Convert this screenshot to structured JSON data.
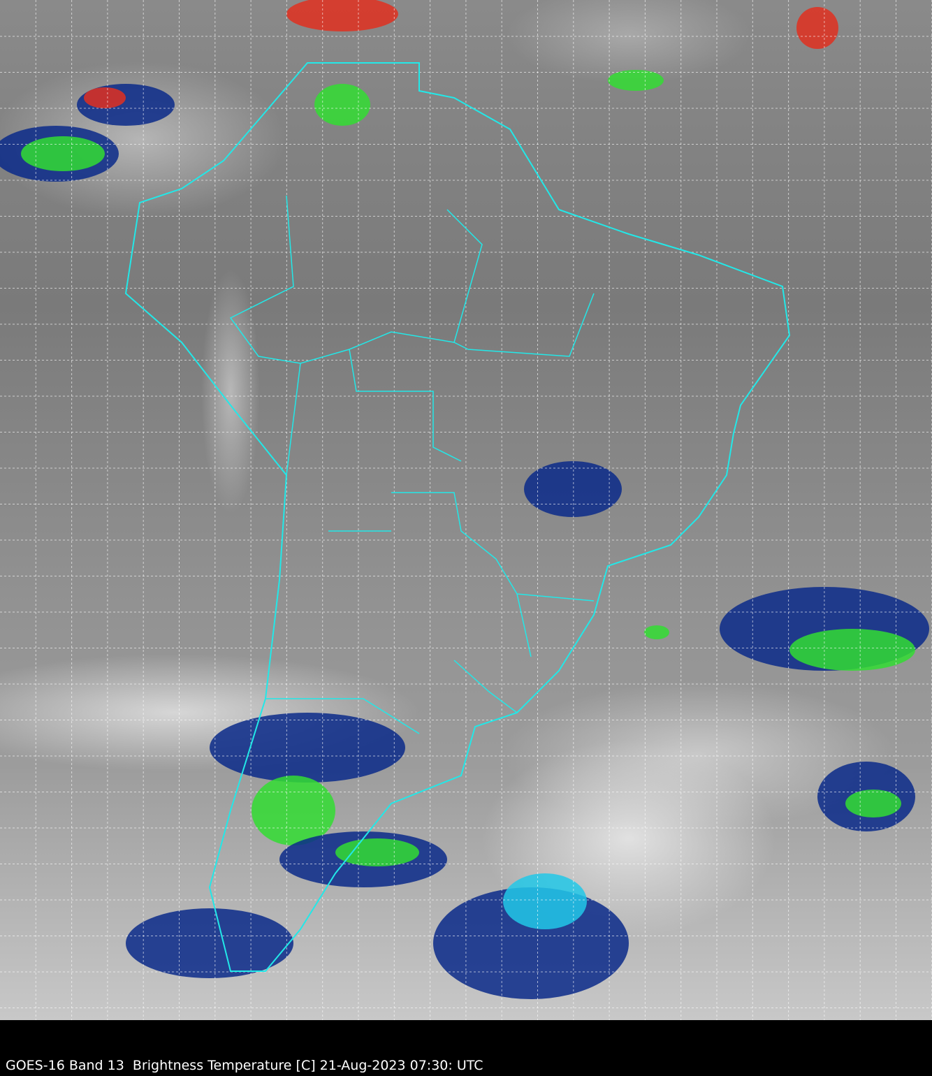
{
  "caption": "GOES-16 Band 13  Brightness Temperature [C] 21-Aug-2023 07:30: UTC",
  "colors": {
    "borders": "#22e8e8",
    "grid": "#ffffff",
    "background": "#000000",
    "cold_cloud_blue": "#0a2a8a",
    "cold_cloud_green": "#33dd33",
    "very_cold_red": "#e03020"
  },
  "grid": "dashed lat/lon lines"
}
